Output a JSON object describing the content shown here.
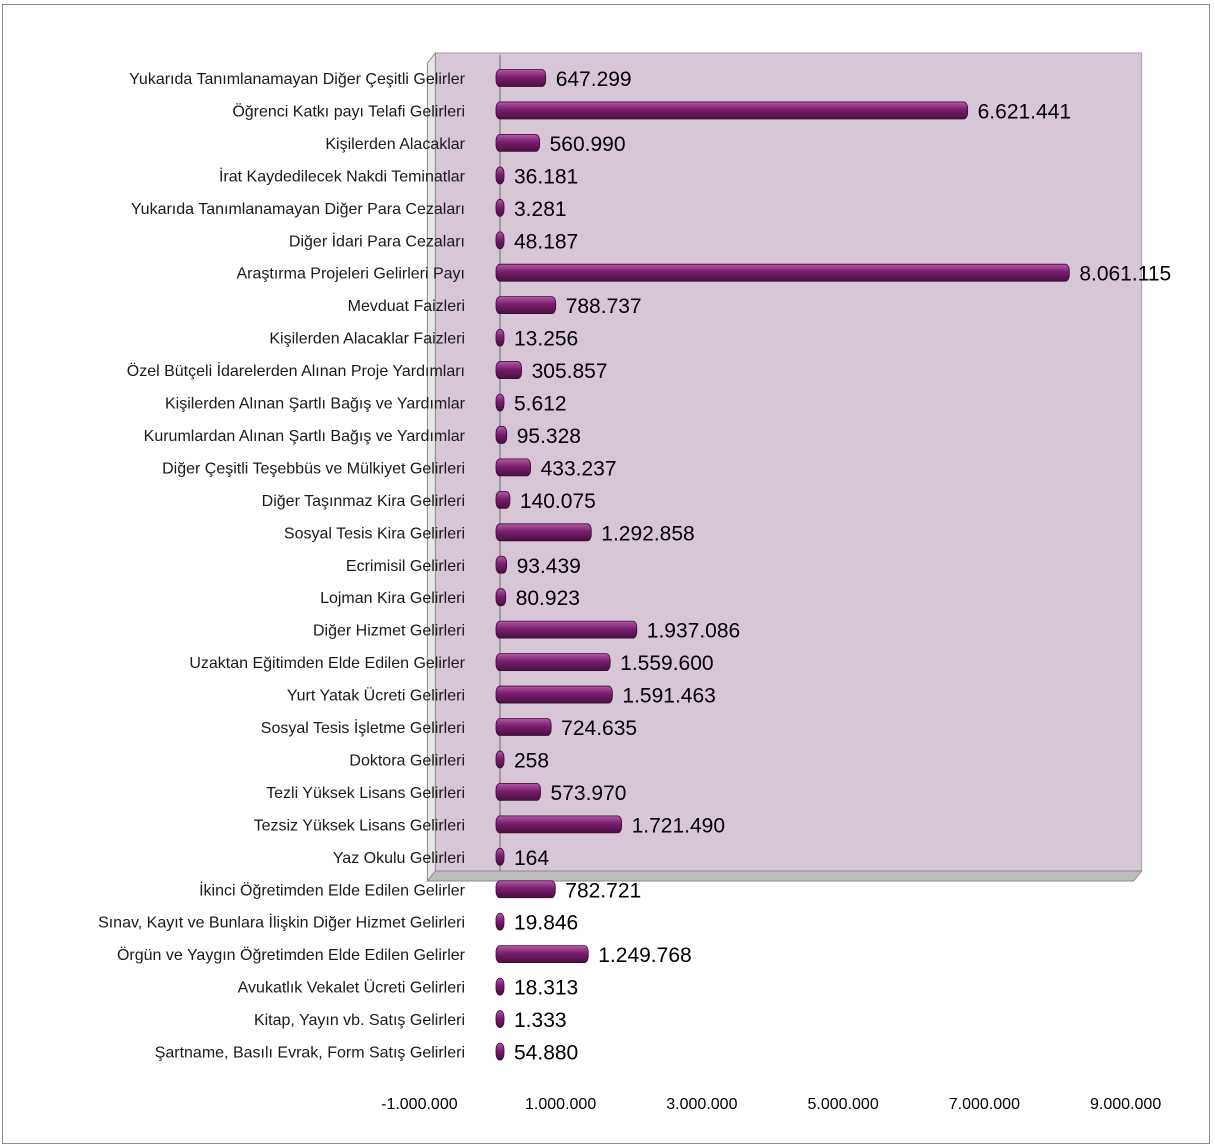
{
  "chart_data": {
    "type": "bar",
    "orientation": "horizontal",
    "style": "3d",
    "bar_color": "#7a1d6e",
    "plot_wall_color": "#d6c6d6",
    "xlim": [
      -1000000,
      9000000
    ],
    "xticks": [
      -1000000,
      1000000,
      3000000,
      5000000,
      7000000,
      9000000
    ],
    "xtick_labels": [
      "-1.000.000",
      "1.000.000",
      "3.000.000",
      "5.000.000",
      "7.000.000",
      "9.000.000"
    ],
    "grid": false,
    "legend": "none",
    "categories": [
      "Yukarıda Tanımlanamayan Diğer Çeşitli Gelirler",
      "Öğrenci Katkı payı Telafi Gelirleri",
      "Kişilerden Alacaklar",
      "İrat Kaydedilecek Nakdi Teminatlar",
      "Yukarıda Tanımlanamayan Diğer Para Cezaları",
      "Diğer İdari Para Cezaları",
      "Araştırma Projeleri Gelirleri Payı",
      "Mevduat Faizleri",
      "Kişilerden Alacaklar Faizleri",
      "Özel Bütçeli İdarelerden Alınan Proje Yardımları",
      "Kişilerden Alınan Şartlı Bağış ve Yardımlar",
      "Kurumlardan Alınan Şartlı Bağış ve Yardımlar",
      "Diğer Çeşitli Teşebbüs ve Mülkiyet Gelirleri",
      "Diğer Taşınmaz Kira Gelirleri",
      "Sosyal Tesis Kira Gelirleri",
      "Ecrimisil Gelirleri",
      "Lojman Kira Gelirleri",
      "Diğer Hizmet Gelirleri",
      "Uzaktan Eğitimden Elde Edilen Gelirler",
      "Yurt Yatak Ücreti Gelirleri",
      "Sosyal Tesis İşletme Gelirleri",
      "Doktora Gelirleri",
      "Tezli Yüksek Lisans Gelirleri",
      "Tezsiz Yüksek Lisans Gelirleri",
      "Yaz Okulu Gelirleri",
      "İkinci Öğretimden Elde Edilen Gelirler",
      "Sınav, Kayıt ve Bunlara İlişkin Diğer Hizmet Gelirleri",
      "Örgün ve Yaygın Öğretimden Elde Edilen Gelirler",
      "Avukatlık Vekalet Ücreti Gelirleri",
      "Kitap, Yayın vb. Satış Gelirleri",
      "Şartname, Basılı Evrak, Form Satış Gelirleri"
    ],
    "values": [
      647299,
      6621441,
      560990,
      36181,
      3281,
      48187,
      8061115,
      788737,
      13256,
      305857,
      5612,
      95328,
      433237,
      140075,
      1292858,
      93439,
      80923,
      1937086,
      1559600,
      1591463,
      724635,
      258,
      573970,
      1721490,
      164,
      782721,
      19846,
      1249768,
      18313,
      1333,
      54880
    ],
    "value_labels": [
      "647.299",
      "6.621.441",
      "560.990",
      "36.181",
      "3.281",
      "48.187",
      "8.061.115",
      "788.737",
      "13.256",
      "305.857",
      "5.612",
      "95.328",
      "433.237",
      "140.075",
      "1.292.858",
      "93.439",
      "80.923",
      "1.937.086",
      "1.559.600",
      "1.591.463",
      "724.635",
      "258",
      "573.970",
      "1.721.490",
      "164",
      "782.721",
      "19.846",
      "1.249.768",
      "18.313",
      "1.333",
      "54.880"
    ]
  }
}
